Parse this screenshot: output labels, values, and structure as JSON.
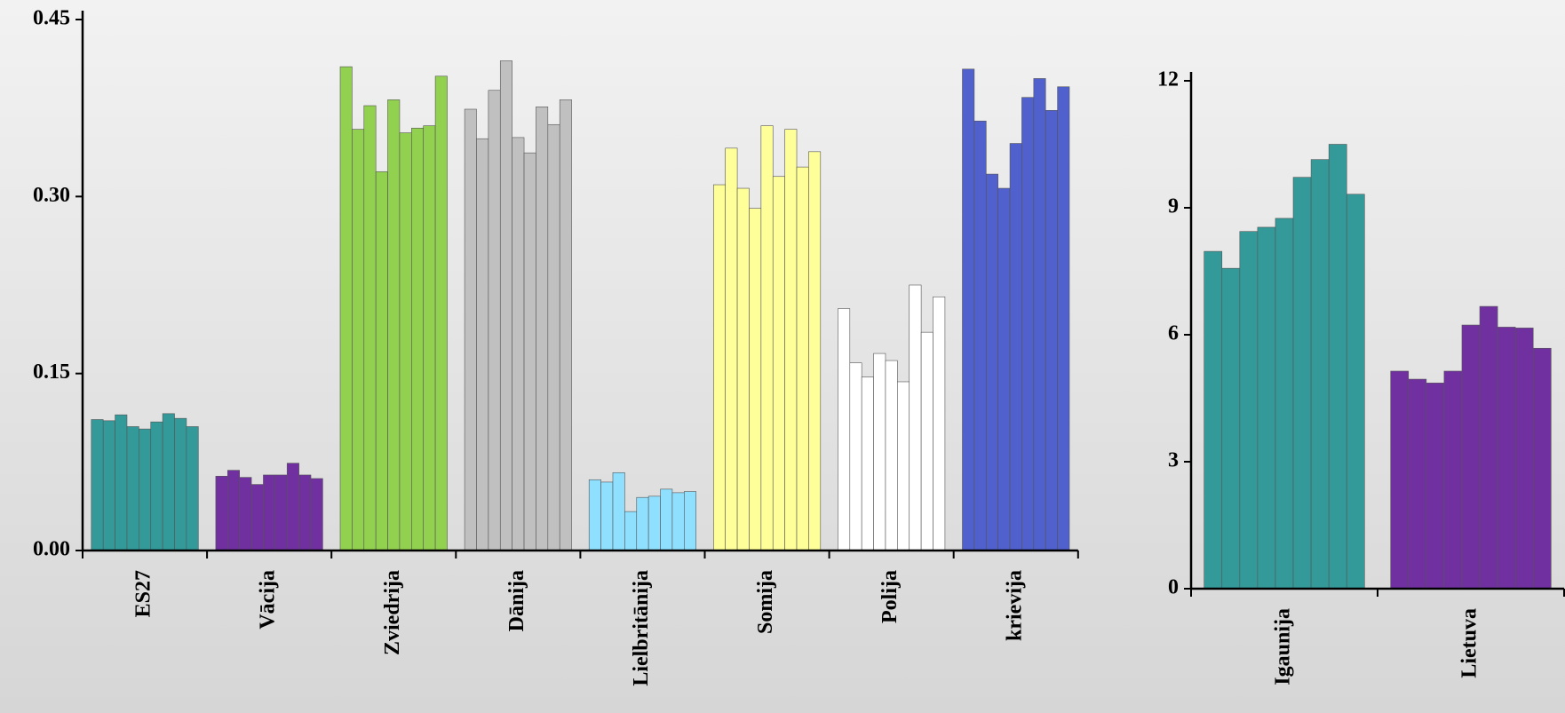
{
  "chart_data": [
    {
      "type": "grouped-bar",
      "ylim": [
        0,
        0.45
      ],
      "yticks": [
        {
          "value": 0,
          "label": "0.00"
        },
        0.15,
        {
          "value": 0.3,
          "label": "0.30"
        },
        0.45
      ],
      "groups": [
        {
          "name": "ES27",
          "color": "#339999",
          "values": [
            0.111,
            0.11,
            0.115,
            0.105,
            0.103,
            0.109,
            0.116,
            0.112,
            0.105
          ]
        },
        {
          "name": "Vācija",
          "color": "#7030a0",
          "values": [
            0.063,
            0.068,
            0.062,
            0.056,
            0.064,
            0.064,
            0.074,
            0.064,
            0.061
          ]
        },
        {
          "name": "Zviedrija",
          "color": "#92d050",
          "values": [
            0.41,
            0.357,
            0.377,
            0.321,
            0.382,
            0.354,
            0.358,
            0.36,
            0.402
          ]
        },
        {
          "name": "Dānija",
          "color": "#c0c0c0",
          "values": [
            0.374,
            0.349,
            0.39,
            0.415,
            0.35,
            0.337,
            0.376,
            0.361,
            0.382
          ]
        },
        {
          "name": "Lielbritānija",
          "color": "#8fdfff",
          "values": [
            0.06,
            0.058,
            0.066,
            0.033,
            0.045,
            0.046,
            0.052,
            0.049,
            0.05
          ]
        },
        {
          "name": "Somija",
          "color": "#ffff99",
          "values": [
            0.31,
            0.341,
            0.307,
            0.29,
            0.36,
            0.317,
            0.357,
            0.325,
            0.338
          ]
        },
        {
          "name": "Polija",
          "color": "#ffffff",
          "values": [
            0.205,
            0.159,
            0.147,
            0.167,
            0.161,
            0.143,
            0.225,
            0.185,
            0.215
          ]
        },
        {
          "name": "krievija",
          "color": "#5060cc",
          "values": [
            0.408,
            0.364,
            0.319,
            0.307,
            0.345,
            0.384,
            0.4,
            0.373,
            0.393
          ]
        }
      ]
    },
    {
      "type": "grouped-bar",
      "ylim": [
        0,
        12
      ],
      "yticks": [
        0,
        3,
        6,
        9,
        12
      ],
      "groups": [
        {
          "name": "Igaunija",
          "color": "#339999",
          "values": [
            7.97,
            7.57,
            8.44,
            8.54,
            8.75,
            9.72,
            10.14,
            10.5,
            9.32
          ]
        },
        {
          "name": "Lietuva",
          "color": "#7030a0",
          "values": [
            5.14,
            4.95,
            4.86,
            5.14,
            6.23,
            6.67,
            6.18,
            6.16,
            5.68
          ]
        }
      ]
    }
  ]
}
